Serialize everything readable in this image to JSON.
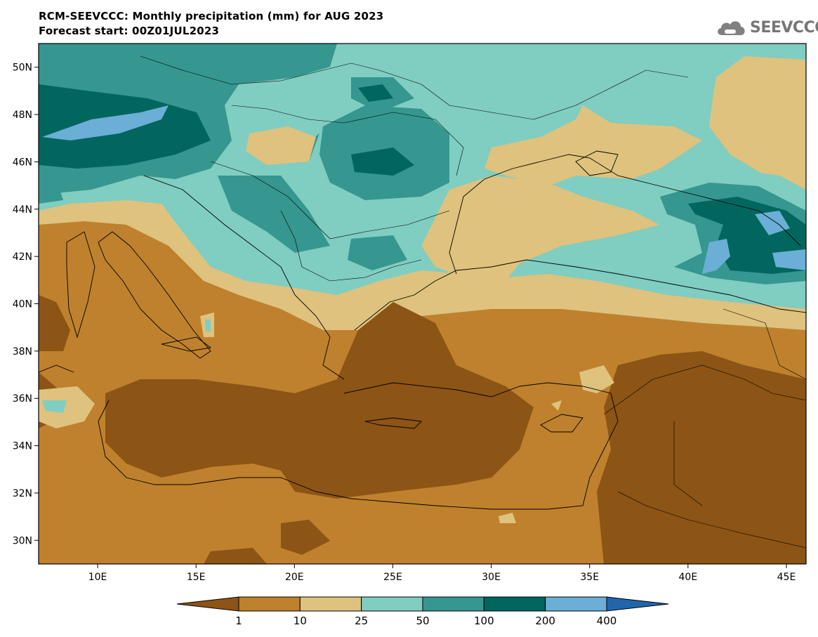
{
  "header": {
    "title": "RCM-SEEVCCC: Monthly precipitation (mm) for AUG 2023",
    "subtitle": "Forecast start: 00Z01JUL2023"
  },
  "logo": {
    "text": "SEEVCCC",
    "icon": "cloud-icon"
  },
  "map": {
    "lon_range": [
      7,
      46
    ],
    "lat_range": [
      29,
      51
    ],
    "y_ticks": [
      "50N",
      "48N",
      "46N",
      "44N",
      "42N",
      "40N",
      "38N",
      "36N",
      "34N",
      "32N",
      "30N"
    ],
    "x_ticks": [
      "10E",
      "15E",
      "20E",
      "25E",
      "30E",
      "35E",
      "40E",
      "45E"
    ]
  },
  "colorbar": {
    "levels": [
      "1",
      "10",
      "25",
      "50",
      "100",
      "200",
      "400"
    ],
    "colors": [
      "#8c5415",
      "#bf812d",
      "#dfc27d",
      "#80cdc1",
      "#35978f",
      "#01665e",
      "#6baed6",
      "#2166ac"
    ]
  }
}
